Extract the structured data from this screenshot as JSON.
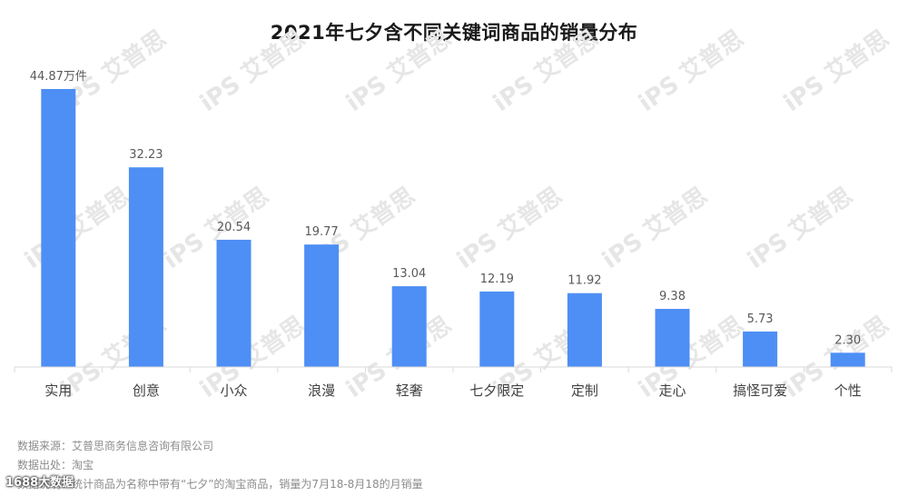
{
  "chart_data": {
    "type": "bar",
    "title": "2021年七夕含不同关键词商品的销量分布",
    "categories": [
      "实用",
      "创意",
      "小众",
      "浪漫",
      "轻奢",
      "七夕限定",
      "定制",
      "走心",
      "搞怪可爱",
      "个性"
    ],
    "values": [
      44.87,
      32.23,
      20.54,
      19.77,
      13.04,
      12.19,
      11.92,
      9.38,
      5.73,
      2.3
    ],
    "value_labels": [
      "44.87万件",
      "32.23",
      "20.54",
      "19.77",
      "13.04",
      "12.19",
      "11.92",
      "9.38",
      "5.73",
      "2.30"
    ],
    "ylim": [
      0,
      44.87
    ],
    "grid": false,
    "legend": "none",
    "bar_color": "#4e8ff5"
  },
  "footer": {
    "source": "数据来源：艾普思商务信息咨询有限公司",
    "platform": "数据出处：淘宝",
    "note": "数据说明：统计商品为名称中带有“七夕”的淘宝商品，销量为7月18-8月18的月销量"
  },
  "watermark": {
    "text": "iPS 艾普思",
    "color": "#e6e6e6"
  },
  "brand_overlay": "1688大数据"
}
